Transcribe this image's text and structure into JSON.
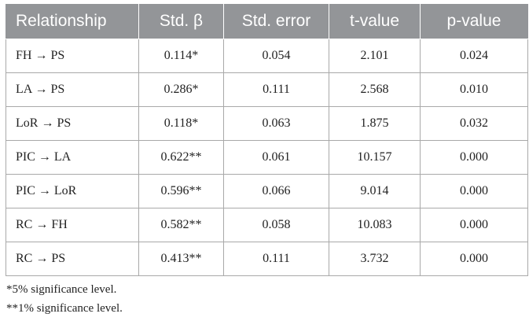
{
  "table": {
    "header": [
      "Relationship",
      "Std. β",
      "Std. error",
      "t-value",
      "p-value"
    ],
    "rows": [
      [
        "FH → PS",
        "0.114*",
        "0.054",
        "2.101",
        "0.024"
      ],
      [
        "LA → PS",
        "0.286*",
        "0.111",
        "2.568",
        "0.010"
      ],
      [
        "LoR → PS",
        "0.118*",
        "0.063",
        "1.875",
        "0.032"
      ],
      [
        "PIC → LA",
        "0.622**",
        "0.061",
        "10.157",
        "0.000"
      ],
      [
        "PIC → LoR",
        "0.596**",
        "0.066",
        "9.014",
        "0.000"
      ],
      [
        "RC → FH",
        "0.582**",
        "0.058",
        "10.083",
        "0.000"
      ],
      [
        "RC → PS",
        "0.413**",
        "0.111",
        "3.732",
        "0.000"
      ]
    ]
  },
  "footnotes": [
    "*5% significance level.",
    "**1% significance level."
  ]
}
